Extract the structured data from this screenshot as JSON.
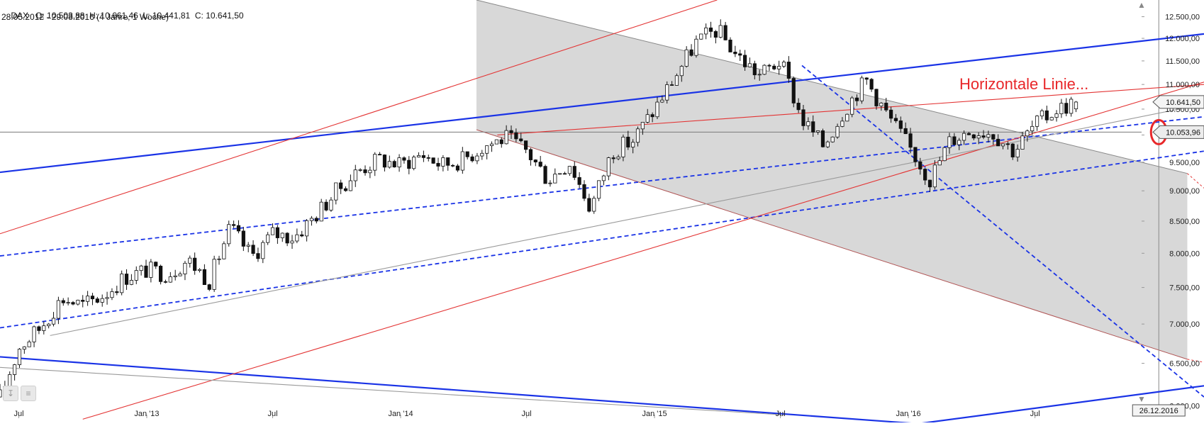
{
  "header": {
    "symbol": "DAX",
    "ohlc": "O: 10.503,88  H: 10.661,46  L: 10.441,81  C: 10.641,50",
    "range": "28.05.2012 - 29.08.2016 (4 Jahre, 1 Woche)"
  },
  "colors": {
    "candle": "#111111",
    "blue_line": "#1a33e6",
    "red_line": "#e33333",
    "gray_line": "#9a9a9a",
    "shade": "#d8d8d8",
    "annotation": "#e8272a"
  },
  "chart_data": {
    "type": "candlestick",
    "title": "DAX",
    "interval": "weekly",
    "yscale": "log",
    "ylim": [
      5900,
      12900
    ],
    "xlim": [
      "2012-06-04",
      "2017-03-01"
    ],
    "y_ticks": [
      6000,
      6500,
      7000,
      7500,
      8000,
      8500,
      9000,
      9500,
      10000,
      10500,
      11000,
      11500,
      12000,
      12500
    ],
    "y_tick_labels": [
      "6.000,00",
      "6.500,00",
      "7.000,00",
      "7.500,00",
      "8.000,00",
      "8.500,00",
      "9.000,00",
      "9.500,00",
      "10.000,00",
      "10.500,00",
      "11.000,00",
      "11.500,00",
      "12.000,00",
      "12.500,00"
    ],
    "x_ticks": [
      {
        "label": "Jul",
        "date": "2012-07-01"
      },
      {
        "label": "Jan '13",
        "date": "2013-01-01"
      },
      {
        "label": "Jul",
        "date": "2013-07-01"
      },
      {
        "label": "Jan '14",
        "date": "2014-01-01"
      },
      {
        "label": "Jul",
        "date": "2014-07-01"
      },
      {
        "label": "Jan '15",
        "date": "2015-01-01"
      },
      {
        "label": "Jul",
        "date": "2015-07-01"
      },
      {
        "label": "Jan '16",
        "date": "2016-01-01"
      },
      {
        "label": "Jul",
        "date": "2016-07-01"
      }
    ],
    "closes": [
      {
        "date": "2012-06-04",
        "close": 6100
      },
      {
        "date": "2012-07-02",
        "close": 6700
      },
      {
        "date": "2012-08-01",
        "close": 6950
      },
      {
        "date": "2012-09-01",
        "close": 7350
      },
      {
        "date": "2012-10-01",
        "close": 7250
      },
      {
        "date": "2012-11-01",
        "close": 7400
      },
      {
        "date": "2012-12-01",
        "close": 7650
      },
      {
        "date": "2013-01-01",
        "close": 7750
      },
      {
        "date": "2013-02-01",
        "close": 7700
      },
      {
        "date": "2013-03-01",
        "close": 7900
      },
      {
        "date": "2013-04-01",
        "close": 7600
      },
      {
        "date": "2013-05-01",
        "close": 8400
      },
      {
        "date": "2013-06-01",
        "close": 7950
      },
      {
        "date": "2013-07-01",
        "close": 8300
      },
      {
        "date": "2013-08-01",
        "close": 8250
      },
      {
        "date": "2013-09-01",
        "close": 8600
      },
      {
        "date": "2013-10-01",
        "close": 9000
      },
      {
        "date": "2013-11-01",
        "close": 9350
      },
      {
        "date": "2013-12-01",
        "close": 9550
      },
      {
        "date": "2014-01-01",
        "close": 9450
      },
      {
        "date": "2014-02-01",
        "close": 9650
      },
      {
        "date": "2014-03-01",
        "close": 9450
      },
      {
        "date": "2014-04-01",
        "close": 9550
      },
      {
        "date": "2014-05-01",
        "close": 9800
      },
      {
        "date": "2014-06-01",
        "close": 9950
      },
      {
        "date": "2014-07-01",
        "close": 9700
      },
      {
        "date": "2014-08-01",
        "close": 9200
      },
      {
        "date": "2014-09-01",
        "close": 9500
      },
      {
        "date": "2014-10-01",
        "close": 8700
      },
      {
        "date": "2014-11-01",
        "close": 9700
      },
      {
        "date": "2014-12-01",
        "close": 9900
      },
      {
        "date": "2015-01-01",
        "close": 10500
      },
      {
        "date": "2015-02-01",
        "close": 11200
      },
      {
        "date": "2015-03-01",
        "close": 11900
      },
      {
        "date": "2015-04-01",
        "close": 12200
      },
      {
        "date": "2015-05-01",
        "close": 11600
      },
      {
        "date": "2015-06-01",
        "close": 11200
      },
      {
        "date": "2015-07-01",
        "close": 11500
      },
      {
        "date": "2015-08-01",
        "close": 10300
      },
      {
        "date": "2015-09-01",
        "close": 9800
      },
      {
        "date": "2015-10-01",
        "close": 10500
      },
      {
        "date": "2015-11-01",
        "close": 11100
      },
      {
        "date": "2015-12-01",
        "close": 10400
      },
      {
        "date": "2016-01-01",
        "close": 9800
      },
      {
        "date": "2016-02-01",
        "close": 9200
      },
      {
        "date": "2016-03-01",
        "close": 9900
      },
      {
        "date": "2016-04-01",
        "close": 10100
      },
      {
        "date": "2016-05-01",
        "close": 10050
      },
      {
        "date": "2016-06-01",
        "close": 9700
      },
      {
        "date": "2016-07-01",
        "close": 10200
      },
      {
        "date": "2016-08-01",
        "close": 10500
      },
      {
        "date": "2016-08-29",
        "close": 10641.5
      }
    ],
    "last_candle": {
      "date": "2016-08-29",
      "open": 10503.88,
      "high": 10661.46,
      "low": 10441.81,
      "close": 10641.5
    },
    "price_markers": [
      {
        "value": 10641.5,
        "label": "10.641,50"
      },
      {
        "value": 10053.96,
        "label": "10.053,96"
      }
    ],
    "horizontal_line": {
      "value": 10053.96
    },
    "vertical_marker": {
      "date": "2016-12-26",
      "label": "26.12.2016"
    },
    "annotation": {
      "text": "Horizontale Linie...",
      "date": "2016-12-26",
      "value": 10053.96
    },
    "triangle_shade": {
      "apex_start": {
        "date": "2014-04-20",
        "value": 12900
      },
      "apex_bottom": {
        "date": "2014-04-20",
        "value": 10100
      },
      "end_date": "2016-12-26",
      "right_edge_date": "2017-02-05",
      "right_top": 9300,
      "right_bottom": 6550
    },
    "trendlines": [
      {
        "style": "blue-solid",
        "from": {
          "date": "2012-06-04",
          "value": 9320
        },
        "to": {
          "date": "2017-03-01",
          "value": 12100
        }
      },
      {
        "style": "blue-solid",
        "from": {
          "date": "2012-06-04",
          "value": 6580
        },
        "to": {
          "date": "2016-01-15",
          "value": 5800
        }
      },
      {
        "style": "blue-solid",
        "from": {
          "date": "2016-01-15",
          "value": 5800
        },
        "to": {
          "date": "2017-03-01",
          "value": 6230
        }
      },
      {
        "style": "blue-dashed",
        "from": {
          "date": "2012-06-04",
          "value": 7960
        },
        "to": {
          "date": "2017-03-01",
          "value": 10350
        }
      },
      {
        "style": "blue-dashed",
        "from": {
          "date": "2012-06-04",
          "value": 6950
        },
        "to": {
          "date": "2017-03-01",
          "value": 9700
        }
      },
      {
        "style": "blue-dashed",
        "from": {
          "date": "2015-08-01",
          "value": 11400
        },
        "to": {
          "date": "2017-03-01",
          "value": 6100
        }
      },
      {
        "style": "red-solid",
        "from": {
          "date": "2012-06-04",
          "value": 8300
        },
        "to": {
          "date": "2015-04-01",
          "value": 12900
        }
      },
      {
        "style": "red-solid",
        "from": {
          "date": "2012-10-01",
          "value": 5850
        },
        "to": {
          "date": "2017-03-01",
          "value": 11050
        }
      },
      {
        "style": "red-solid",
        "from": {
          "date": "2014-05-20",
          "value": 10000
        },
        "to": {
          "date": "2017-03-01",
          "value": 11000
        }
      },
      {
        "style": "gray-solid",
        "from": {
          "date": "2012-08-15",
          "value": 6850
        },
        "to": {
          "date": "2017-03-01",
          "value": 10600
        }
      },
      {
        "style": "gray-solid",
        "from": {
          "date": "2012-06-04",
          "value": 6450
        },
        "to": {
          "date": "2015-07-01",
          "value": 5900
        }
      }
    ]
  }
}
